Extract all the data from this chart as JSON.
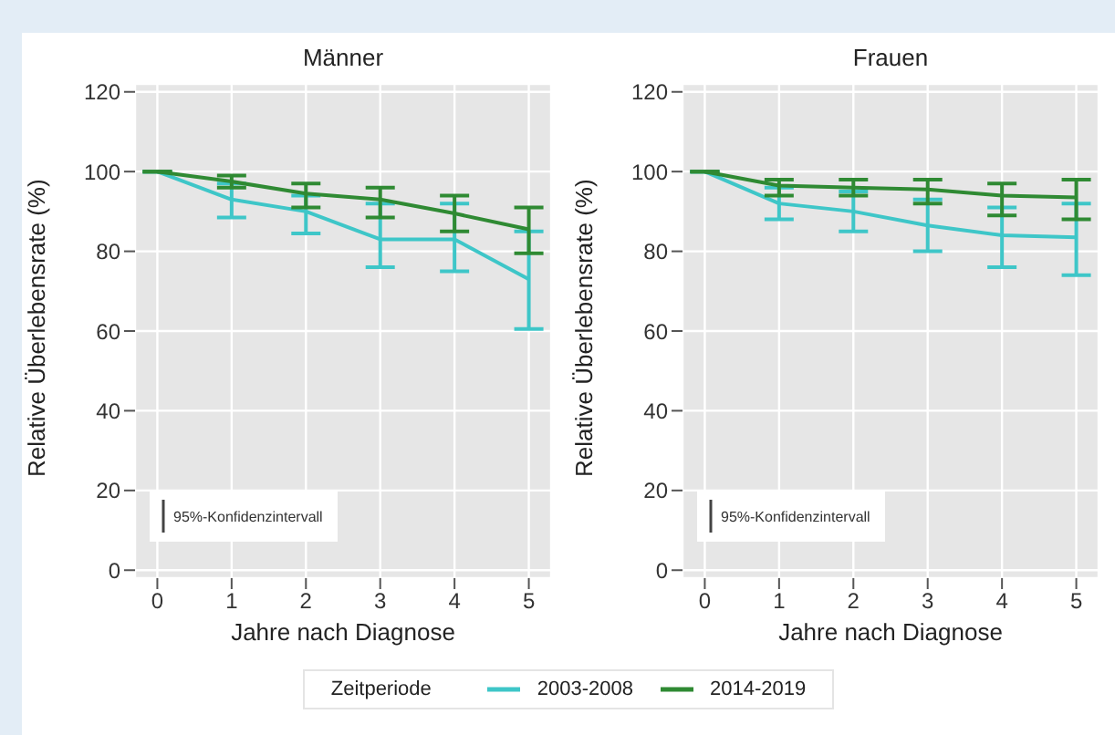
{
  "chart_data": [
    {
      "type": "line",
      "title": "Männer",
      "xlabel": "Jahre nach Diagnose",
      "ylabel": "Relative Überlebensrate (%)",
      "x": [
        0,
        1,
        2,
        3,
        4,
        5
      ],
      "xlim": [
        -0.3,
        5.3
      ],
      "xticks": [
        0,
        1,
        2,
        3,
        4,
        5
      ],
      "ylim": [
        -2,
        122
      ],
      "yticks": [
        0,
        20,
        40,
        60,
        80,
        100,
        120
      ],
      "grid": true,
      "marker": "none",
      "legend": "bottom",
      "legend_title": "Zeitperiode",
      "annotations": [
        "95%-Konfidenzintervall"
      ],
      "series": [
        {
          "name": "2003-2008",
          "color": "#3ec6c8",
          "values": [
            100,
            93,
            90,
            83,
            83,
            73
          ],
          "errors": [
            null,
            [
              88.5,
              97
            ],
            [
              84.5,
              94
            ],
            [
              76,
              92
            ],
            [
              75,
              92
            ],
            [
              60.5,
              85
            ]
          ]
        },
        {
          "name": "2014-2019",
          "color": "#2f8a33",
          "values": [
            100,
            97.5,
            94.5,
            93,
            89.5,
            85.5
          ],
          "errors": [
            null,
            [
              96,
              99
            ],
            [
              91,
              97
            ],
            [
              88.5,
              96
            ],
            [
              85,
              94
            ],
            [
              79.5,
              91
            ]
          ]
        }
      ]
    },
    {
      "type": "line",
      "title": "Frauen",
      "xlabel": "Jahre nach Diagnose",
      "ylabel": "Relative Überlebensrate (%)",
      "x": [
        0,
        1,
        2,
        3,
        4,
        5
      ],
      "xlim": [
        -0.3,
        5.3
      ],
      "xticks": [
        0,
        1,
        2,
        3,
        4,
        5
      ],
      "ylim": [
        -2,
        122
      ],
      "yticks": [
        0,
        20,
        40,
        60,
        80,
        100,
        120
      ],
      "grid": true,
      "marker": "none",
      "annotations": [
        "95%-Konfidenzintervall"
      ],
      "series": [
        {
          "color": "#3ec6c8",
          "values": [
            100,
            92,
            90,
            86.5,
            84,
            83.5
          ],
          "errors": [
            null,
            [
              88,
              96
            ],
            [
              85,
              95
            ],
            [
              80,
              93
            ],
            [
              76,
              91
            ],
            [
              74,
              92
            ]
          ]
        },
        {
          "color": "#2f8a33",
          "values": [
            100,
            96.5,
            96,
            95.5,
            94,
            93.5
          ],
          "errors": [
            null,
            [
              94,
              98
            ],
            [
              94,
              98
            ],
            [
              92,
              98
            ],
            [
              89,
              97
            ],
            [
              88,
              98
            ]
          ]
        }
      ]
    }
  ]
}
